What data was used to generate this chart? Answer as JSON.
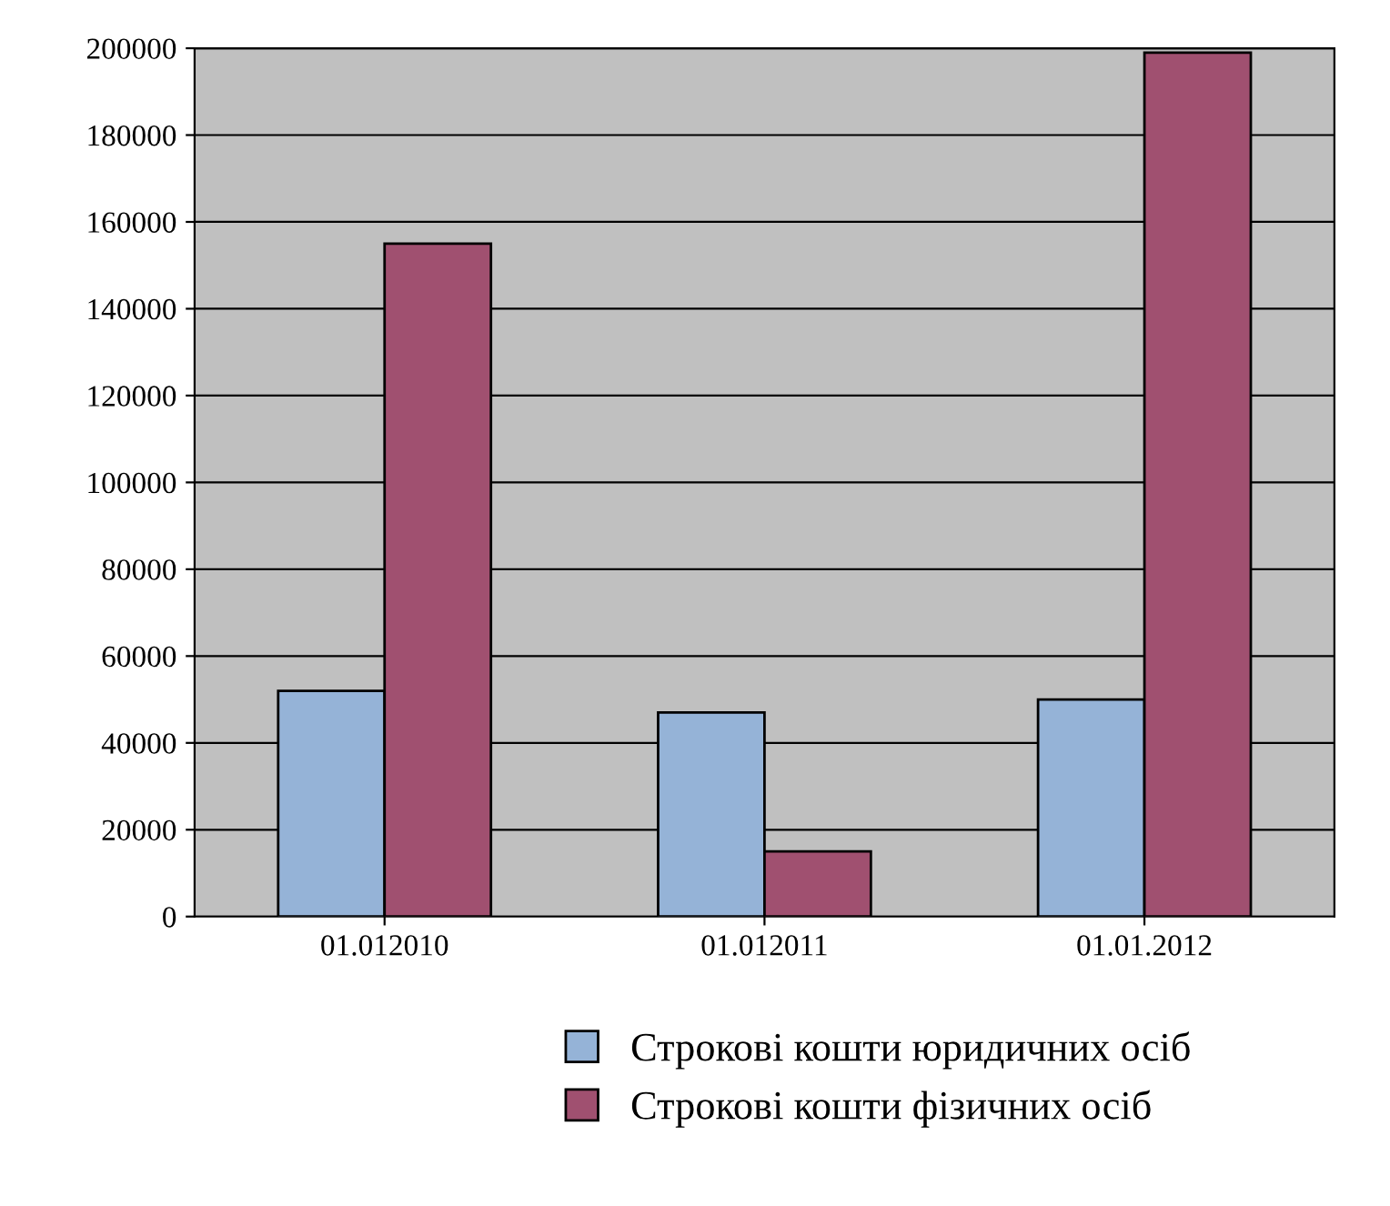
{
  "chart_data": {
    "type": "bar",
    "categories": [
      "01.012010",
      "01.012011",
      "01.01.2012"
    ],
    "series": [
      {
        "name": "Строкові кошти юридичних осіб",
        "color": "#95b3d7",
        "values": [
          52000,
          47000,
          50000
        ]
      },
      {
        "name": "Строкові кошти фізичних осіб",
        "color": "#a05070",
        "values": [
          155000,
          15000,
          199000
        ]
      }
    ],
    "ylim": [
      0,
      200000
    ],
    "yticks": [
      0,
      20000,
      40000,
      60000,
      80000,
      100000,
      120000,
      140000,
      160000,
      180000,
      200000
    ],
    "grid": "y",
    "legend": "bottom"
  }
}
